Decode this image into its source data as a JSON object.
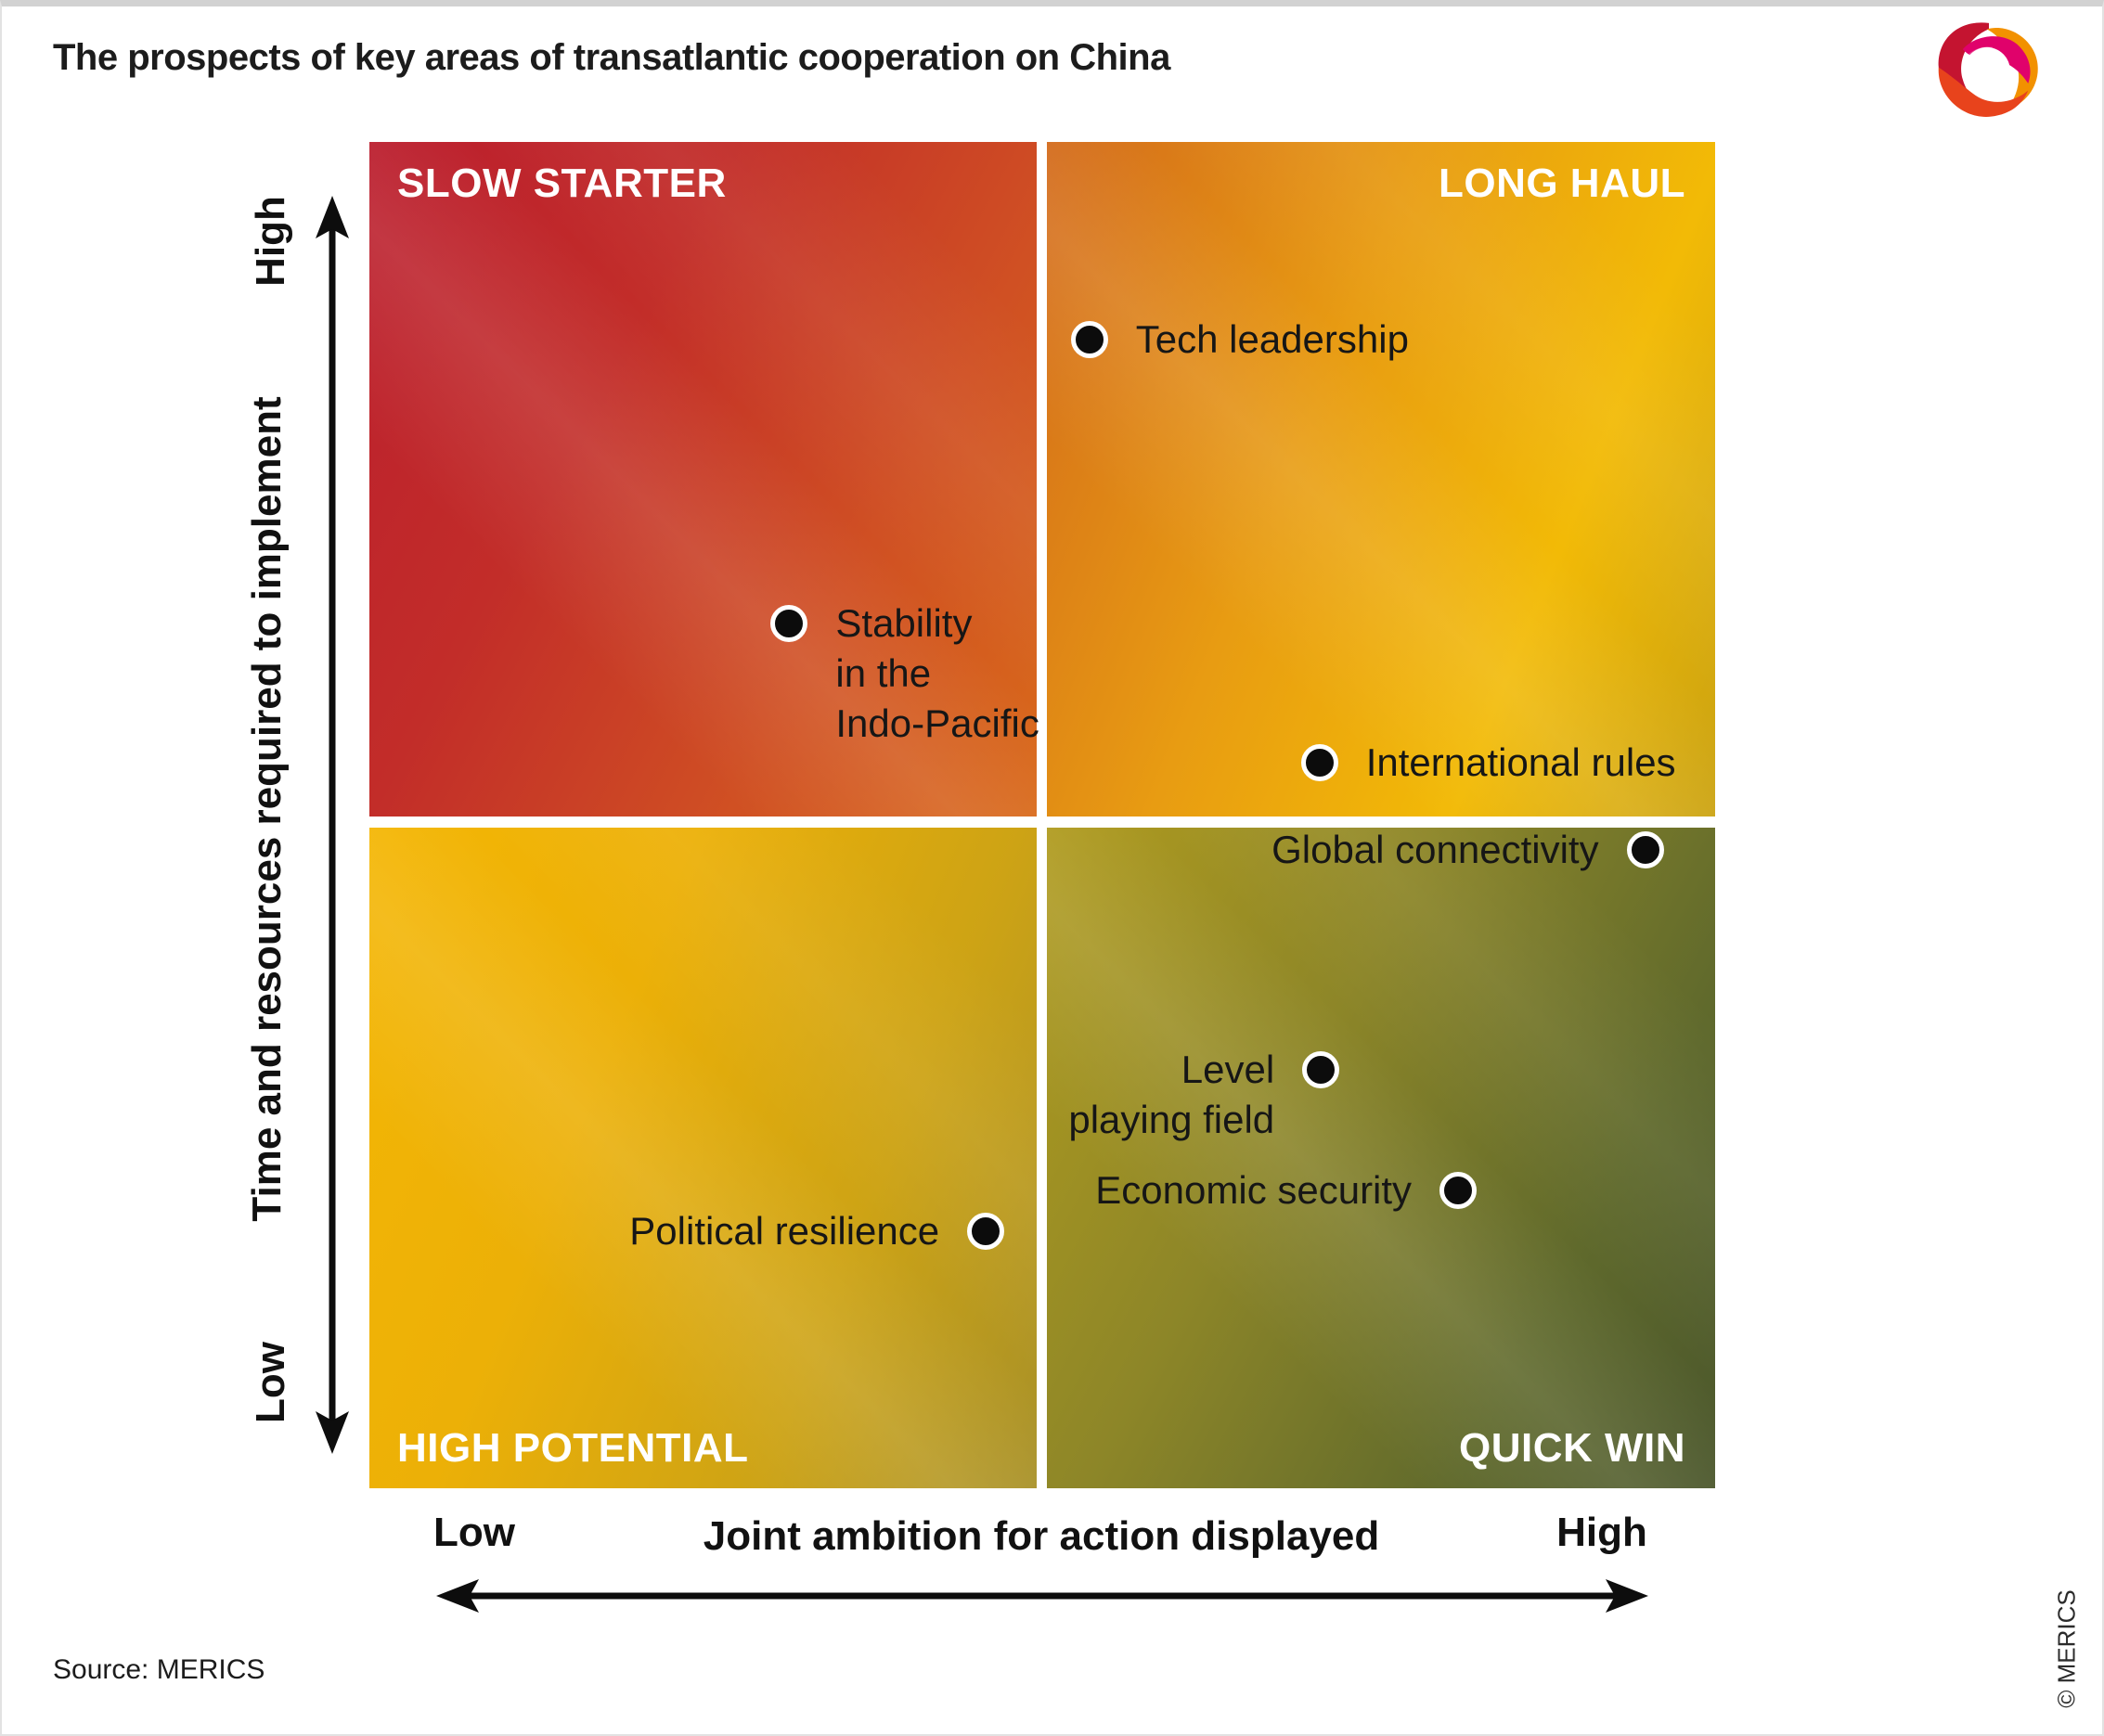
{
  "title": "The prospects of key areas of transatlantic cooperation on China",
  "source": "Source: MERICS",
  "copyright": "© MERICS",
  "logo": {
    "name": "MERICS logo",
    "colors": {
      "red": "#c41430",
      "pink": "#e0026b",
      "orange": "#f29100",
      "orange_red": "#e8431c"
    }
  },
  "chart_data": {
    "type": "scatter",
    "title": "The prospects of key areas of transatlantic cooperation on China",
    "x_axis": {
      "label": "Joint ambition for action displayed",
      "min_label": "Low",
      "max_label": "High",
      "range": [
        0,
        1
      ]
    },
    "y_axis": {
      "label": "Time and resources required to implement",
      "min_label": "Low",
      "max_label": "High",
      "range": [
        0,
        1
      ]
    },
    "grid": "off",
    "legend": "none",
    "quadrants": [
      {
        "id": "slow-starter",
        "label": "SLOW STARTER",
        "position": "top-left",
        "angle": 118,
        "stops": [
          [
            "#bb1e2e",
            "0%"
          ],
          [
            "#c22d29",
            "35%"
          ],
          [
            "#d05023",
            "70%"
          ],
          [
            "#d96a1a",
            "100%"
          ]
        ]
      },
      {
        "id": "long-haul",
        "label": "LONG HAUL",
        "position": "top-right",
        "angle": 112,
        "stops": [
          [
            "#d36a1b",
            "0%"
          ],
          [
            "#e89c12",
            "40%"
          ],
          [
            "#f2ba06",
            "72%"
          ],
          [
            "#cba311",
            "100%"
          ]
        ]
      },
      {
        "id": "high-potential",
        "label": "HIGH POTENTIAL",
        "position": "bottom-left",
        "angle": 112,
        "stops": [
          [
            "#f4b604",
            "0%"
          ],
          [
            "#ecb007",
            "35%"
          ],
          [
            "#cda315",
            "70%"
          ],
          [
            "#a89128",
            "100%"
          ]
        ]
      },
      {
        "id": "quick-win",
        "label": "QUICK WIN",
        "position": "bottom-right",
        "angle": 118,
        "stops": [
          [
            "#b09b1e",
            "0%"
          ],
          [
            "#8d8628",
            "38%"
          ],
          [
            "#5f692c",
            "75%"
          ],
          [
            "#4b572c",
            "100%"
          ]
        ]
      }
    ],
    "points": [
      {
        "id": "tech-leadership",
        "label": "Tech leadership",
        "lines": [
          "Tech leadership"
        ],
        "x": 0.535,
        "y": 0.853,
        "label_side": "right"
      },
      {
        "id": "stability-indo-pacific",
        "label": "Stability in the Indo-Pacific",
        "lines": [
          "Stability",
          "in the",
          "Indo-Pacific"
        ],
        "x": 0.312,
        "y": 0.642,
        "label_side": "right"
      },
      {
        "id": "international-rules",
        "label": "International rules",
        "lines": [
          "International rules"
        ],
        "x": 0.706,
        "y": 0.539,
        "label_side": "right"
      },
      {
        "id": "global-connectivity",
        "label": "Global connectivity",
        "lines": [
          "Global connectivity"
        ],
        "x": 0.948,
        "y": 0.474,
        "label_side": "left"
      },
      {
        "id": "level-playing-field",
        "label": "Level playing field",
        "lines": [
          "Level",
          "playing field"
        ],
        "x": 0.707,
        "y": 0.311,
        "label_side": "left"
      },
      {
        "id": "economic-security",
        "label": "Economic security",
        "lines": [
          "Economic security"
        ],
        "x": 0.809,
        "y": 0.221,
        "label_side": "left"
      },
      {
        "id": "political-resilience",
        "label": "Political resilience",
        "lines": [
          "Political resilience"
        ],
        "x": 0.458,
        "y": 0.191,
        "label_side": "left"
      }
    ],
    "marker": {
      "shape": "circle",
      "fill": "#0c0c0c",
      "ring": "#ffffff"
    }
  }
}
